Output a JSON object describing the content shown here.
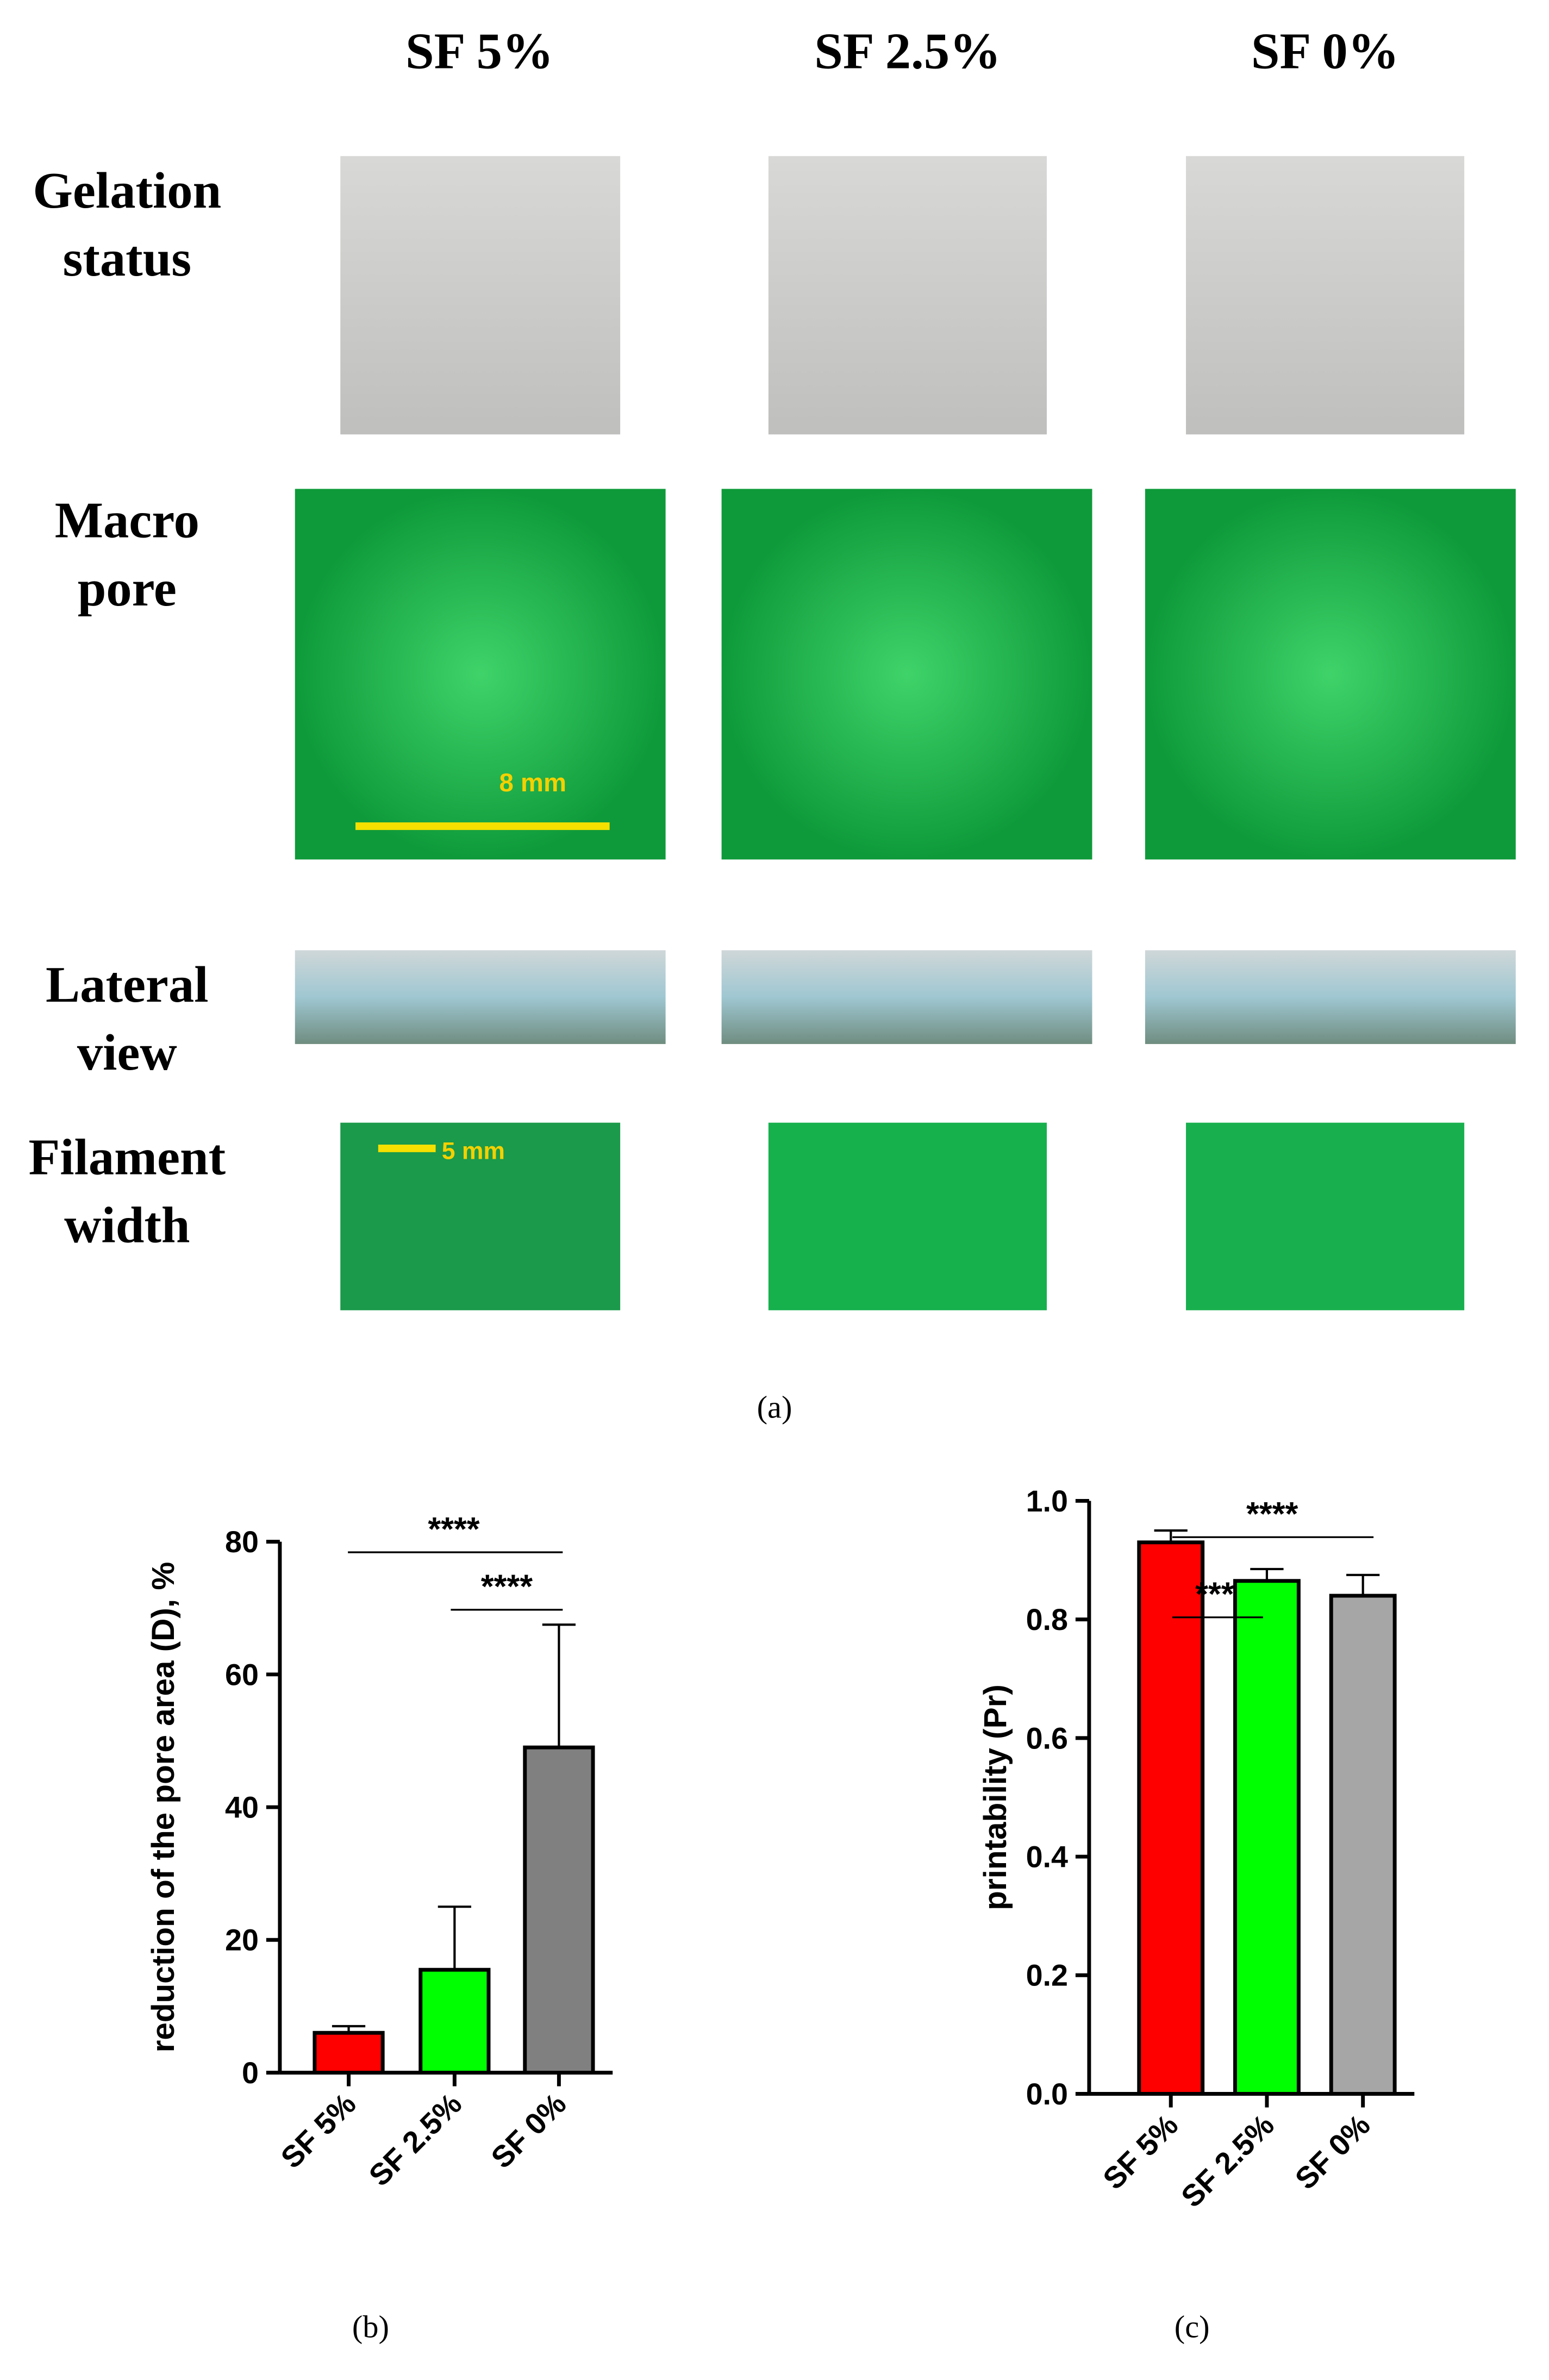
{
  "panel_a": {
    "column_headers": [
      "SF 5%",
      "SF 2.5%",
      "SF 0%"
    ],
    "row_labels": [
      [
        "Gelation",
        "status"
      ],
      [
        "Macro",
        "pore"
      ],
      [
        "Lateral",
        "view"
      ],
      [
        "Filament",
        "width"
      ]
    ],
    "scale_labels": [
      "8  mm",
      "5 mm"
    ],
    "caption": "(a)"
  },
  "chart_data": [
    {
      "type": "bar",
      "caption": "(b)",
      "y_label": "reduction of the pore area (D), %",
      "categories": [
        "SF 5%",
        "SF 2.5%",
        "SF 0%"
      ],
      "values": [
        6,
        15.5,
        49
      ],
      "errors": [
        1,
        9.5,
        18.5
      ],
      "colors": [
        "#ff0000",
        "#00ff00",
        "#808080"
      ],
      "ylim": [
        0,
        80
      ],
      "yticks": [
        0,
        20,
        40,
        60,
        80
      ],
      "annotations": [
        "****",
        "****"
      ]
    },
    {
      "type": "bar",
      "caption": "(c)",
      "y_label": "printability (Pr)",
      "categories": [
        "SF 5%",
        "SF 2.5%",
        "SF 0%"
      ],
      "values": [
        0.93,
        0.865,
        0.84
      ],
      "errors": [
        0.02,
        0.02,
        0.035
      ],
      "colors": [
        "#ff0000",
        "#00ff00",
        "#a6a6a6"
      ],
      "ylim": [
        0,
        1.0
      ],
      "yticks": [
        {
          "value": 0,
          "label": "0.0"
        },
        {
          "value": 0.2,
          "label": "0.2"
        },
        {
          "value": 0.4,
          "label": "0.4"
        },
        {
          "value": 0.6,
          "label": "0.6"
        },
        {
          "value": 0.8,
          "label": "0.8"
        },
        {
          "value": 1.0,
          "label": "1.0"
        }
      ],
      "annotations": [
        "****",
        "***"
      ]
    }
  ]
}
